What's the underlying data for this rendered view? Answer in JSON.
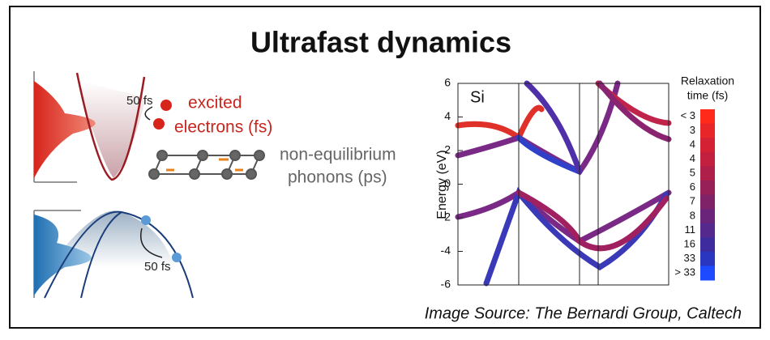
{
  "title": "Ultrafast dynamics",
  "electron_panel": {
    "time_label": "50 fs",
    "label_line1": "excited",
    "label_line2": "electrons (fs)"
  },
  "phonon_panel": {
    "label_line1": "non-equilibrium",
    "label_line2": "phonons (ps)"
  },
  "hole_panel": {
    "time_label": "50 fs"
  },
  "band_plot": {
    "material": "Si",
    "ylabel": "Energy (eV)",
    "ylim": [
      -6,
      6
    ],
    "yticks": [
      6,
      4,
      2,
      0,
      -2,
      -4,
      -6
    ]
  },
  "colorbar": {
    "title_line1": "Relaxation",
    "title_line2": "time (fs)",
    "labels": [
      "< 3",
      "3",
      "4",
      "4",
      "5",
      "6",
      "7",
      "8",
      "11",
      "16",
      "33",
      "> 33"
    ],
    "colors": [
      "#ff2a1a",
      "#e8262a",
      "#d42234",
      "#c2203e",
      "#ae1f4a",
      "#982058",
      "#802268",
      "#6a247a",
      "#54288c",
      "#3e2c9e",
      "#2a36c0",
      "#1e4aff"
    ]
  },
  "source": "Image Source: The Bernardi Group, Caltech"
}
